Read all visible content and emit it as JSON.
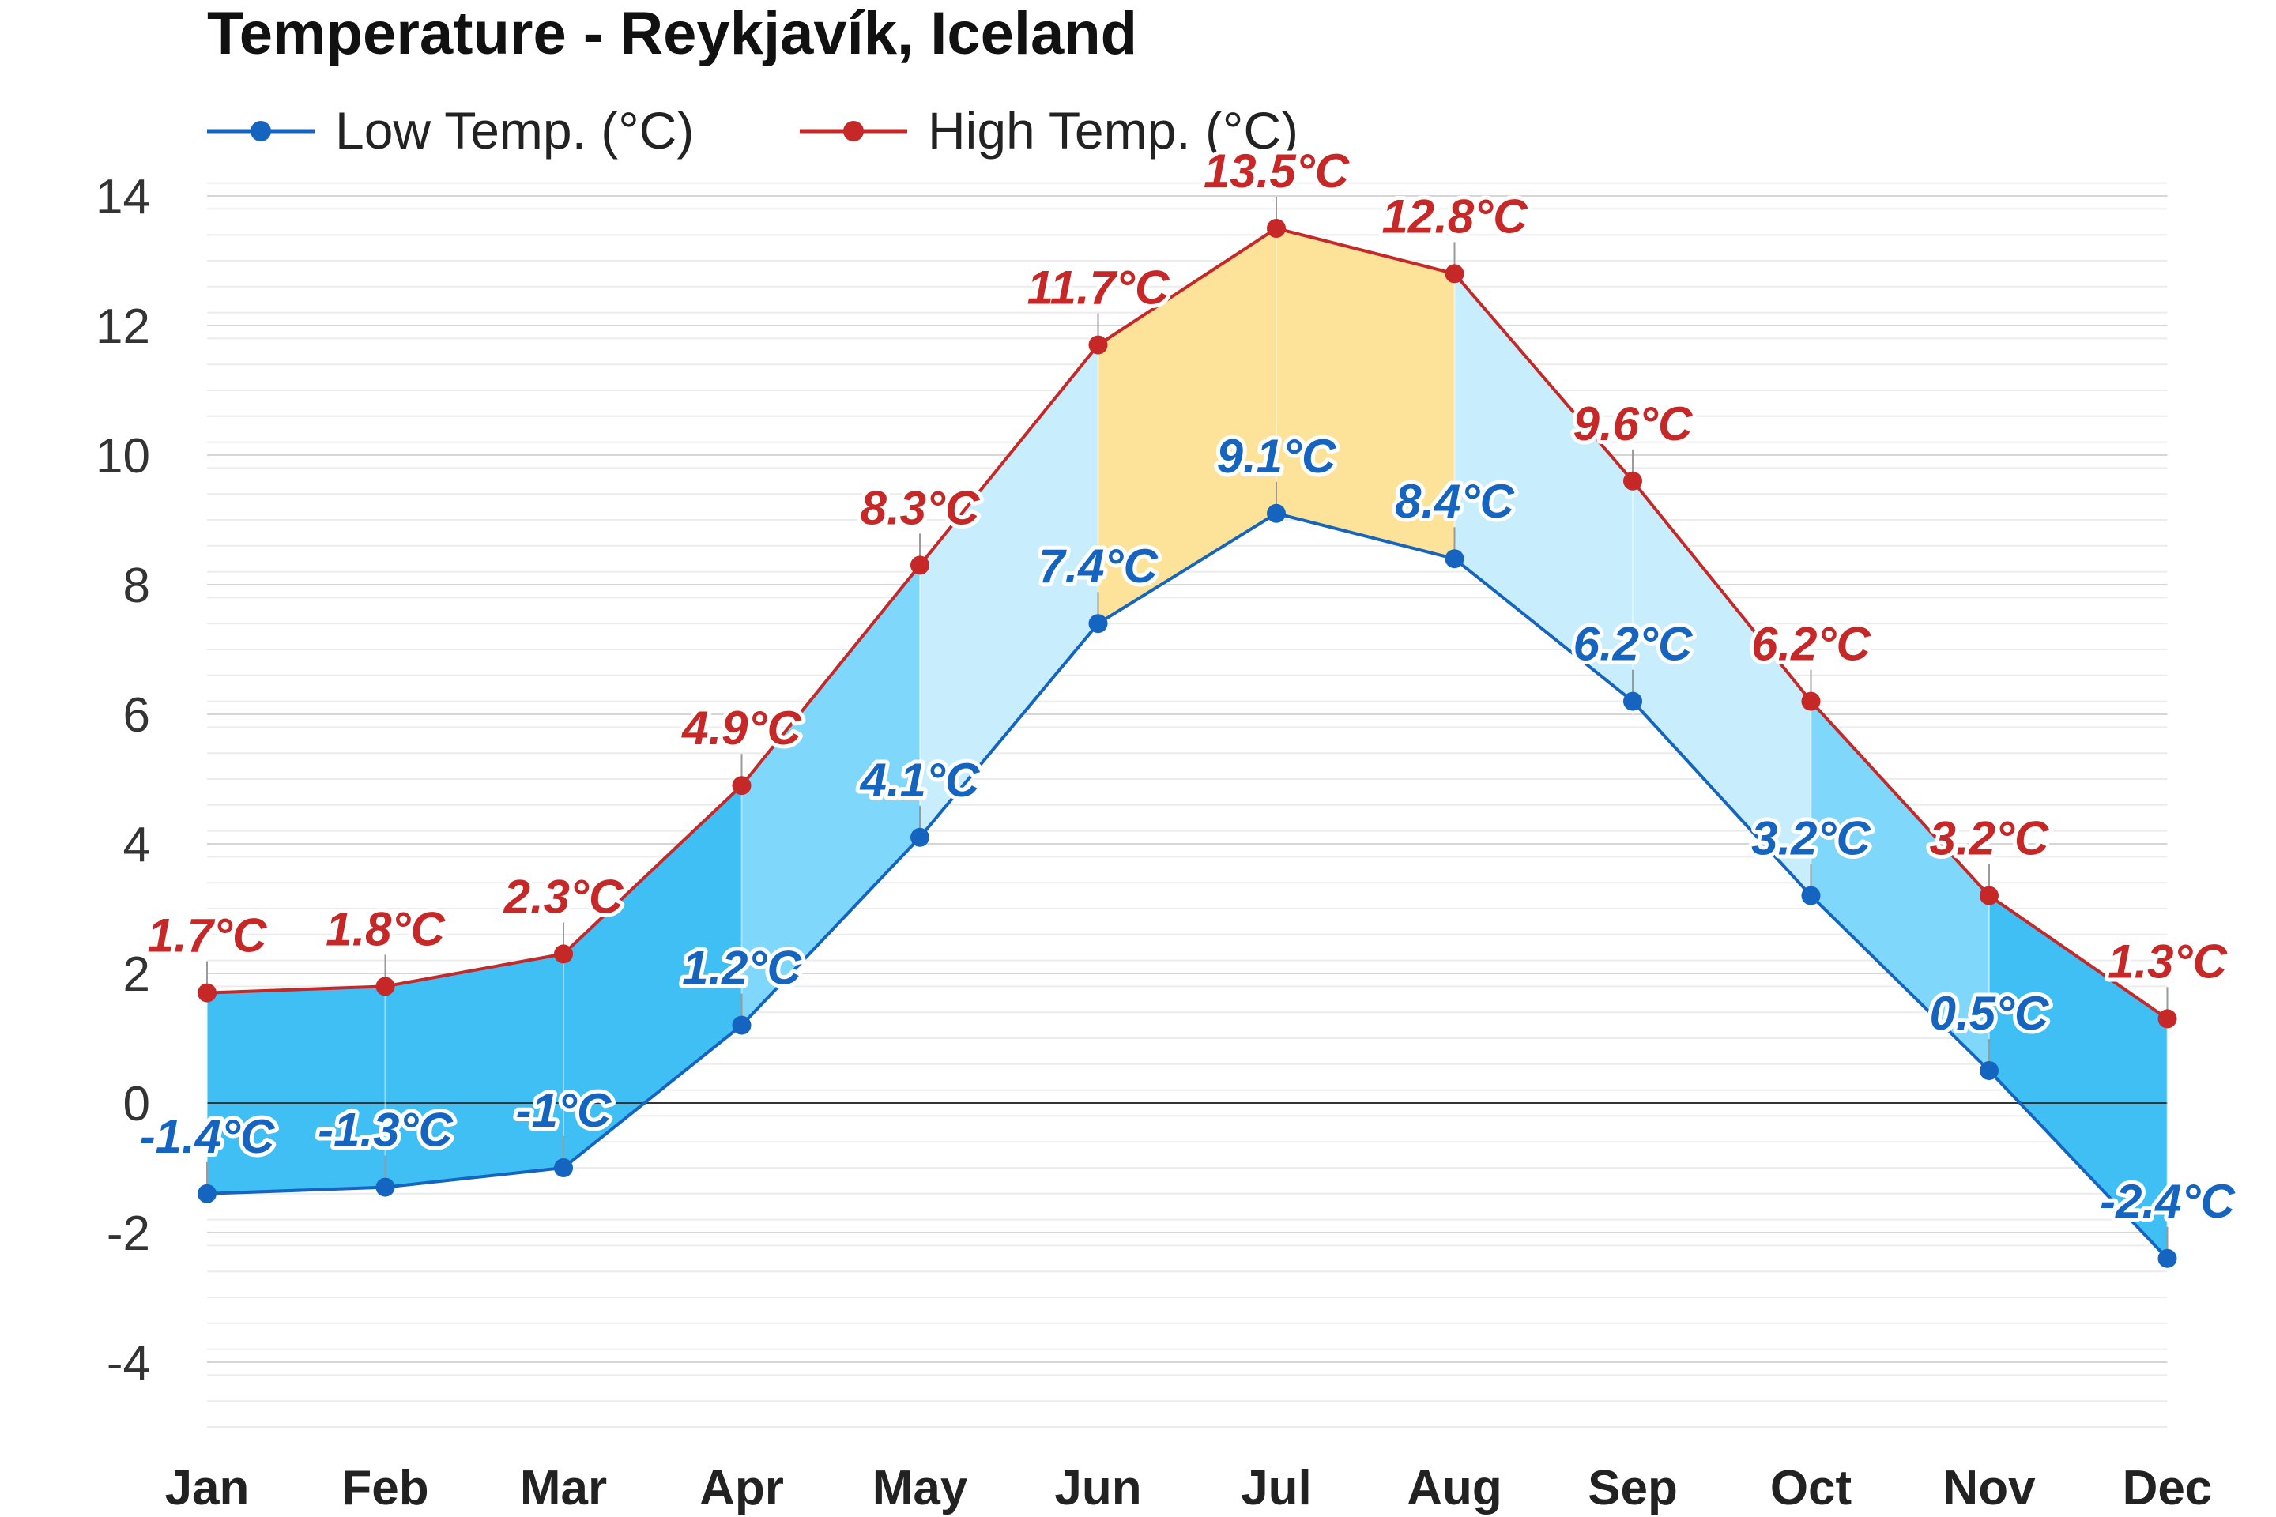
{
  "chart_data": {
    "type": "line",
    "title": "Temperature - Reykjavík, Iceland",
    "categories": [
      "Jan",
      "Feb",
      "Mar",
      "Apr",
      "May",
      "Jun",
      "Jul",
      "Aug",
      "Sep",
      "Oct",
      "Nov",
      "Dec"
    ],
    "series": [
      {
        "name": "Low Temp. (°C)",
        "color": "#1565c0",
        "values": [
          -1.4,
          -1.3,
          -1,
          1.2,
          4.1,
          7.4,
          9.1,
          8.4,
          6.2,
          3.2,
          0.5,
          -2.4
        ],
        "labels": [
          "-1.4°C",
          "-1.3°C",
          "-1°C",
          "1.2°C",
          "4.1°C",
          "7.4°C",
          "9.1°C",
          "8.4°C",
          "6.2°C",
          "3.2°C",
          "0.5°C",
          "-2.4°C"
        ]
      },
      {
        "name": "High Temp. (°C)",
        "color": "#c62828",
        "values": [
          1.7,
          1.8,
          2.3,
          4.9,
          8.3,
          11.7,
          13.5,
          12.8,
          9.6,
          6.2,
          3.2,
          1.3
        ],
        "labels": [
          "1.7°C",
          "1.8°C",
          "2.3°C",
          "4.9°C",
          "8.3°C",
          "11.7°C",
          "13.5°C",
          "12.8°C",
          "9.6°C",
          "6.2°C",
          "3.2°C",
          "1.3°C"
        ]
      }
    ],
    "yticks": [
      "14",
      "12",
      "10",
      "8",
      "6",
      "4",
      "2",
      "0",
      "-2",
      "-4"
    ],
    "ylim": [
      -5,
      14
    ],
    "legend": "top-left",
    "grid": true,
    "band_colors": {
      "cold": "#40bff5",
      "cool": "#7fd8fb",
      "mild": "#c8eefd",
      "warm": "#fde39a"
    }
  }
}
